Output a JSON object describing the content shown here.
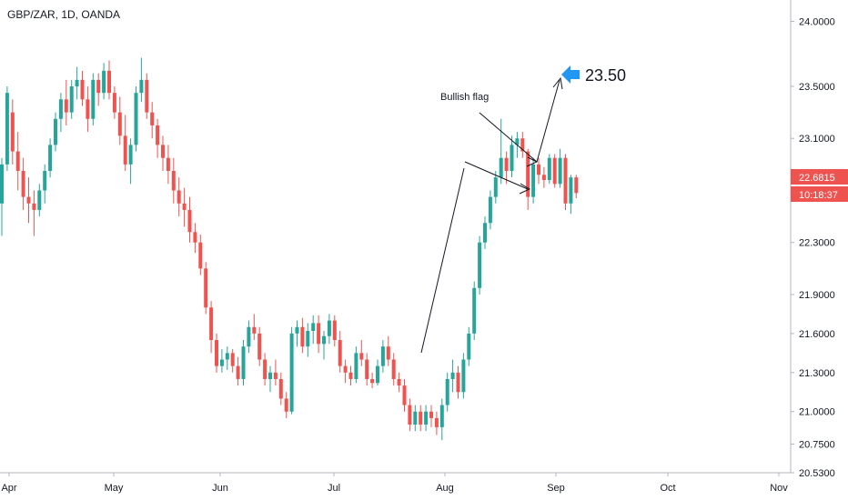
{
  "header": {
    "symbol_label": "GBP/ZAR, 1D, OANDA"
  },
  "colors": {
    "up": "#26a69a",
    "down": "#ef5350",
    "axis": "#787b86",
    "arrow_blue": "#2196f3",
    "line": "#131722"
  },
  "chart_data": {
    "type": "candlestick",
    "title": "GBP/ZAR, 1D, OANDA",
    "ylim": [
      20.53,
      24.08
    ],
    "y_ticks": [
      "24.0000",
      "23.5000",
      "23.1000",
      "22.3000",
      "21.9000",
      "21.6000",
      "21.3000",
      "21.0000",
      "20.7500",
      "20.5300"
    ],
    "x_tick_labels": [
      "Apr",
      "May",
      "Jun",
      "Jul",
      "Aug",
      "Sep",
      "Oct",
      "Nov"
    ],
    "last_price": "22.6815",
    "countdown": "10:18:37",
    "annotations": {
      "pattern_label": "Bullish flag",
      "target_label": "23.50"
    },
    "ohlc": [
      [
        22.6,
        22.95,
        22.35,
        22.9
      ],
      [
        22.9,
        23.5,
        22.85,
        23.45
      ],
      [
        23.3,
        23.4,
        22.9,
        23.0
      ],
      [
        23.0,
        23.15,
        22.7,
        22.85
      ],
      [
        22.85,
        22.95,
        22.55,
        22.65
      ],
      [
        22.65,
        22.8,
        22.45,
        22.6
      ],
      [
        22.6,
        22.7,
        22.35,
        22.55
      ],
      [
        22.55,
        22.75,
        22.5,
        22.7
      ],
      [
        22.7,
        22.9,
        22.6,
        22.85
      ],
      [
        22.85,
        23.1,
        22.8,
        23.05
      ],
      [
        23.05,
        23.3,
        23.0,
        23.25
      ],
      [
        23.25,
        23.45,
        23.15,
        23.4
      ],
      [
        23.4,
        23.55,
        23.2,
        23.3
      ],
      [
        23.3,
        23.55,
        23.25,
        23.5
      ],
      [
        23.5,
        23.65,
        23.4,
        23.55
      ],
      [
        23.55,
        23.62,
        23.35,
        23.4
      ],
      [
        23.4,
        23.5,
        23.15,
        23.25
      ],
      [
        23.25,
        23.6,
        23.2,
        23.55
      ],
      [
        23.55,
        23.6,
        23.35,
        23.45
      ],
      [
        23.45,
        23.68,
        23.4,
        23.62
      ],
      [
        23.62,
        23.7,
        23.4,
        23.45
      ],
      [
        23.45,
        23.5,
        23.25,
        23.3
      ],
      [
        23.3,
        23.42,
        23.05,
        23.12
      ],
      [
        23.12,
        23.28,
        22.85,
        22.9
      ],
      [
        22.9,
        23.1,
        22.75,
        23.05
      ],
      [
        23.05,
        23.5,
        23.0,
        23.45
      ],
      [
        23.45,
        23.72,
        23.38,
        23.55
      ],
      [
        23.55,
        23.6,
        23.25,
        23.3
      ],
      [
        23.3,
        23.38,
        23.1,
        23.2
      ],
      [
        23.2,
        23.25,
        22.95,
        23.05
      ],
      [
        23.05,
        23.12,
        22.85,
        22.95
      ],
      [
        22.95,
        23.05,
        22.75,
        22.85
      ],
      [
        22.85,
        22.95,
        22.6,
        22.7
      ],
      [
        22.7,
        22.8,
        22.5,
        22.6
      ],
      [
        22.6,
        22.72,
        22.42,
        22.55
      ],
      [
        22.55,
        22.65,
        22.3,
        22.38
      ],
      [
        22.38,
        22.45,
        22.22,
        22.3
      ],
      [
        22.3,
        22.36,
        22.05,
        22.1
      ],
      [
        22.1,
        22.15,
        21.75,
        21.8
      ],
      [
        21.8,
        21.85,
        21.45,
        21.55
      ],
      [
        21.55,
        21.6,
        21.3,
        21.35
      ],
      [
        21.35,
        21.48,
        21.3,
        21.4
      ],
      [
        21.4,
        21.5,
        21.32,
        21.45
      ],
      [
        21.45,
        21.48,
        21.3,
        21.35
      ],
      [
        21.35,
        21.42,
        21.2,
        21.25
      ],
      [
        21.25,
        21.55,
        21.2,
        21.5
      ],
      [
        21.5,
        21.7,
        21.45,
        21.65
      ],
      [
        21.65,
        21.75,
        21.55,
        21.6
      ],
      [
        21.6,
        21.65,
        21.35,
        21.4
      ],
      [
        21.4,
        21.45,
        21.2,
        21.25
      ],
      [
        21.25,
        21.35,
        21.15,
        21.3
      ],
      [
        21.3,
        21.4,
        21.2,
        21.25
      ],
      [
        21.25,
        21.3,
        21.05,
        21.1
      ],
      [
        21.1,
        21.15,
        20.95,
        21.0
      ],
      [
        21.0,
        21.65,
        20.98,
        21.6
      ],
      [
        21.6,
        21.7,
        21.5,
        21.65
      ],
      [
        21.65,
        21.72,
        21.45,
        21.5
      ],
      [
        21.5,
        21.68,
        21.42,
        21.62
      ],
      [
        21.62,
        21.74,
        21.52,
        21.68
      ],
      [
        21.68,
        21.74,
        21.45,
        21.52
      ],
      [
        21.52,
        21.62,
        21.4,
        21.58
      ],
      [
        21.58,
        21.75,
        21.52,
        21.7
      ],
      [
        21.7,
        21.74,
        21.5,
        21.55
      ],
      [
        21.55,
        21.62,
        21.3,
        21.35
      ],
      [
        21.35,
        21.4,
        21.22,
        21.3
      ],
      [
        21.3,
        21.35,
        21.2,
        21.25
      ],
      [
        21.25,
        21.5,
        21.22,
        21.45
      ],
      [
        21.45,
        21.55,
        21.35,
        21.4
      ],
      [
        21.4,
        21.45,
        21.2,
        21.25
      ],
      [
        21.25,
        21.3,
        21.18,
        21.22
      ],
      [
        21.22,
        21.4,
        21.2,
        21.35
      ],
      [
        21.35,
        21.55,
        21.3,
        21.5
      ],
      [
        21.5,
        21.58,
        21.35,
        21.4
      ],
      [
        21.4,
        21.45,
        21.2,
        21.25
      ],
      [
        21.25,
        21.3,
        21.15,
        21.2
      ],
      [
        21.2,
        21.25,
        21.0,
        21.05
      ],
      [
        21.05,
        21.1,
        20.85,
        20.9
      ],
      [
        20.9,
        21.05,
        20.85,
        21.0
      ],
      [
        21.0,
        21.05,
        20.85,
        20.9
      ],
      [
        20.9,
        21.05,
        20.85,
        21.0
      ],
      [
        21.0,
        21.05,
        20.88,
        20.95
      ],
      [
        20.95,
        21.0,
        20.82,
        20.88
      ],
      [
        20.88,
        21.1,
        20.78,
        21.05
      ],
      [
        21.05,
        21.3,
        21.0,
        21.25
      ],
      [
        21.25,
        21.4,
        21.15,
        21.3
      ],
      [
        21.3,
        21.35,
        21.1,
        21.15
      ],
      [
        21.15,
        21.45,
        21.1,
        21.4
      ],
      [
        21.4,
        21.65,
        21.35,
        21.6
      ],
      [
        21.6,
        22.0,
        21.55,
        21.95
      ],
      [
        21.95,
        22.35,
        21.9,
        22.3
      ],
      [
        22.3,
        22.5,
        22.25,
        22.45
      ],
      [
        22.45,
        22.7,
        22.4,
        22.65
      ],
      [
        22.65,
        22.85,
        22.6,
        22.8
      ],
      [
        22.8,
        23.25,
        22.75,
        22.95
      ],
      [
        22.95,
        23.0,
        22.75,
        22.85
      ],
      [
        22.85,
        23.12,
        22.8,
        23.05
      ],
      [
        23.05,
        23.15,
        22.95,
        23.1
      ],
      [
        23.1,
        23.15,
        22.95,
        23.0
      ],
      [
        23.0,
        23.02,
        22.55,
        22.65
      ],
      [
        22.65,
        22.95,
        22.6,
        22.9
      ],
      [
        22.9,
        22.95,
        22.75,
        22.82
      ],
      [
        22.82,
        22.88,
        22.72,
        22.78
      ],
      [
        22.78,
        22.98,
        22.75,
        22.95
      ],
      [
        22.95,
        22.98,
        22.72,
        22.75
      ],
      [
        22.75,
        23.02,
        22.72,
        22.95
      ],
      [
        22.95,
        22.98,
        22.55,
        22.6
      ],
      [
        22.6,
        22.82,
        22.52,
        22.8
      ],
      [
        22.8,
        22.82,
        22.64,
        22.68
      ]
    ]
  }
}
